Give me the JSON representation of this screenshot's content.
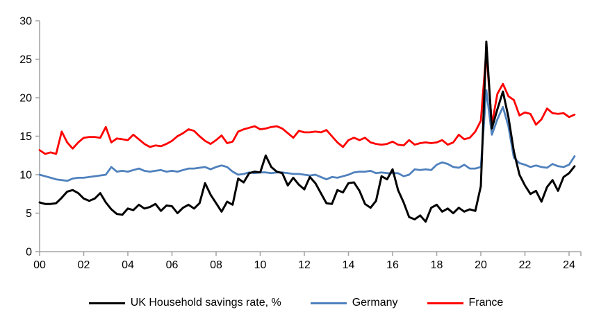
{
  "chart_data": {
    "type": "line",
    "title": "",
    "xlabel": "",
    "ylabel": "",
    "ylim": [
      0,
      30
    ],
    "y_ticks": [
      0,
      5,
      10,
      15,
      20,
      25,
      30
    ],
    "x_tick_labels": [
      "00",
      "02",
      "04",
      "06",
      "08",
      "10",
      "12",
      "14",
      "16",
      "18",
      "20",
      "22",
      "24"
    ],
    "x_frequency": "quarterly",
    "x_range": "2000Q1 to 2024Q2",
    "grid": false,
    "legend_position": "bottom",
    "axis_color": "#A6A6A6",
    "background_color": "#FFFFFF",
    "series": [
      {
        "name": "UK Household savings rate, %",
        "color": "#000000",
        "stroke_width": 3,
        "values": [
          6.4,
          6.2,
          6.2,
          6.3,
          7.0,
          7.8,
          8.0,
          7.6,
          6.9,
          6.6,
          6.9,
          7.6,
          6.4,
          5.5,
          4.9,
          4.8,
          5.6,
          5.4,
          6.1,
          5.6,
          5.8,
          6.2,
          5.3,
          6.0,
          5.9,
          5.0,
          5.7,
          6.1,
          5.6,
          6.3,
          8.9,
          7.4,
          6.3,
          5.2,
          6.5,
          6.1,
          9.5,
          9.0,
          10.2,
          10.4,
          10.3,
          12.5,
          11.0,
          10.4,
          10.2,
          8.6,
          9.6,
          8.7,
          8.1,
          9.7,
          8.9,
          7.6,
          6.3,
          6.2,
          8.0,
          7.7,
          8.9,
          9.0,
          7.9,
          6.2,
          5.7,
          6.6,
          9.8,
          9.4,
          10.7,
          8.0,
          6.4,
          4.5,
          4.2,
          4.7,
          3.9,
          5.7,
          6.1,
          5.2,
          5.6,
          5.0,
          5.7,
          5.2,
          5.5,
          5.3,
          8.5,
          27.3,
          16.0,
          18.5,
          20.8,
          17.5,
          13.0,
          10.0,
          8.6,
          7.5,
          7.9,
          6.5,
          8.4,
          9.3,
          7.9,
          9.7,
          10.2,
          11.1
        ]
      },
      {
        "name": "Germany",
        "color": "#4F81BD",
        "stroke_width": 2.8,
        "values": [
          10.0,
          9.8,
          9.6,
          9.4,
          9.3,
          9.2,
          9.5,
          9.6,
          9.6,
          9.7,
          9.8,
          9.9,
          10.0,
          11.0,
          10.4,
          10.5,
          10.4,
          10.6,
          10.8,
          10.5,
          10.4,
          10.5,
          10.6,
          10.4,
          10.5,
          10.4,
          10.6,
          10.8,
          10.8,
          10.9,
          11.0,
          10.7,
          11.0,
          11.2,
          11.0,
          10.4,
          10.0,
          10.1,
          10.3,
          10.2,
          10.3,
          10.3,
          10.2,
          10.3,
          10.3,
          10.2,
          10.1,
          10.1,
          10.0,
          9.9,
          10.0,
          9.7,
          9.4,
          9.7,
          9.6,
          9.8,
          10.0,
          10.3,
          10.4,
          10.4,
          10.5,
          10.2,
          10.3,
          10.2,
          10.2,
          10.2,
          9.8,
          10.0,
          10.7,
          10.6,
          10.7,
          10.6,
          11.3,
          11.6,
          11.4,
          11.0,
          10.9,
          11.3,
          10.8,
          10.8,
          11.0,
          21.0,
          15.2,
          17.2,
          18.8,
          16.3,
          12.2,
          11.5,
          11.3,
          11.0,
          11.2,
          11.0,
          10.9,
          11.4,
          11.1,
          11.0,
          11.3,
          12.4
        ]
      },
      {
        "name": "France",
        "color": "#FF0000",
        "stroke_width": 2.8,
        "values": [
          13.2,
          12.7,
          12.9,
          12.7,
          15.6,
          14.2,
          13.4,
          14.2,
          14.8,
          14.9,
          14.9,
          14.8,
          16.2,
          14.2,
          14.7,
          14.6,
          14.5,
          15.2,
          14.6,
          14.0,
          13.6,
          13.8,
          13.7,
          14.0,
          14.4,
          15.0,
          15.4,
          15.9,
          15.7,
          15.0,
          14.4,
          14.0,
          14.5,
          15.1,
          14.1,
          14.3,
          15.6,
          15.9,
          16.1,
          16.3,
          15.9,
          16.0,
          16.2,
          16.3,
          16.0,
          15.4,
          14.8,
          15.7,
          15.5,
          15.5,
          15.6,
          15.5,
          15.8,
          15.0,
          14.2,
          13.6,
          14.5,
          14.8,
          14.5,
          14.8,
          14.2,
          14.0,
          13.9,
          14.0,
          14.3,
          13.9,
          13.8,
          14.5,
          13.9,
          14.1,
          14.2,
          14.1,
          14.2,
          14.5,
          13.9,
          14.2,
          15.2,
          14.6,
          14.8,
          15.6,
          17.0,
          26.0,
          16.5,
          20.5,
          21.8,
          20.2,
          19.7,
          17.7,
          18.1,
          17.9,
          16.5,
          17.2,
          18.6,
          18.0,
          17.9,
          18.0,
          17.5,
          17.8
        ]
      }
    ]
  }
}
